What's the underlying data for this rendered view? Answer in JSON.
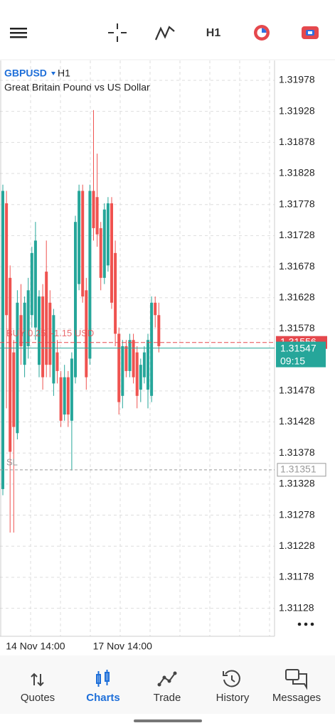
{
  "toolbar": {
    "timeframe": "H1"
  },
  "chart_data": {
    "type": "candlestick",
    "title": "GBPUSD",
    "timeframe": "H1",
    "subtitle": "Great Britain Pound vs US Dollar",
    "categories": [
      null,
      null,
      null,
      null,
      null,
      null,
      null,
      null,
      null,
      "14 Nov 14:00",
      null,
      null,
      null,
      null,
      null,
      null,
      null,
      null,
      null,
      null,
      null,
      null,
      null,
      null,
      null,
      null,
      null,
      null,
      null,
      null,
      null,
      null,
      null,
      "17 Nov 14:00",
      null,
      null,
      null,
      null,
      null,
      null,
      null,
      null,
      null,
      null
    ],
    "open": [
      1.3132,
      1.3178,
      1.3166,
      1.3154,
      1.3141,
      1.316,
      1.3152,
      1.3155,
      1.316,
      1.3158,
      1.3152,
      1.3163,
      1.3167,
      1.3162,
      1.3149,
      1.3154,
      1.315,
      1.3144,
      1.315,
      1.3143,
      1.315,
      1.3165,
      1.318,
      1.3164,
      1.3153,
      1.318,
      1.3179,
      1.3174,
      1.3166,
      1.3168,
      1.3178,
      1.317,
      1.3157,
      1.3147,
      1.3155,
      1.3151,
      1.3156,
      1.3154,
      1.3148,
      1.315,
      1.3148,
      1.3147,
      1.3162,
      1.316
    ],
    "high": [
      1.3181,
      1.318,
      1.3168,
      1.3156,
      1.3164,
      1.3165,
      1.3163,
      1.3166,
      1.3171,
      1.3175,
      1.3164,
      1.3165,
      1.3172,
      1.3164,
      1.3161,
      1.3156,
      1.3151,
      1.3152,
      1.3151,
      1.3154,
      1.3176,
      1.3181,
      1.3181,
      1.3166,
      1.3181,
      1.3193,
      1.3186,
      1.3175,
      1.3178,
      1.3179,
      1.3179,
      1.3172,
      1.3158,
      1.3156,
      1.3156,
      1.3157,
      1.3157,
      1.3155,
      1.3153,
      1.3155,
      1.3157,
      1.3163,
      1.3163,
      1.3162
    ],
    "low": [
      1.3131,
      1.3145,
      1.3125,
      1.3125,
      1.314,
      1.3152,
      1.315,
      1.3153,
      1.3158,
      1.3156,
      1.315,
      1.3148,
      1.315,
      1.315,
      1.3147,
      1.3149,
      1.3142,
      1.3143,
      1.3142,
      1.3135,
      1.3149,
      1.3164,
      1.3162,
      1.3148,
      1.3152,
      1.3172,
      1.3171,
      1.3164,
      1.3165,
      1.3167,
      1.3161,
      1.3155,
      1.3144,
      1.3145,
      1.315,
      1.315,
      1.3149,
      1.3145,
      1.3146,
      1.3149,
      1.3145,
      1.3146,
      1.3158,
      1.3154
    ],
    "close": [
      1.318,
      1.316,
      1.3138,
      1.3142,
      1.3162,
      1.3155,
      1.3162,
      1.3164,
      1.317,
      1.3172,
      1.3163,
      1.315,
      1.3152,
      1.3152,
      1.316,
      1.3151,
      1.3143,
      1.315,
      1.3144,
      1.3153,
      1.3175,
      1.318,
      1.3163,
      1.315,
      1.318,
      1.3174,
      1.3173,
      1.3166,
      1.3177,
      1.3178,
      1.3162,
      1.3157,
      1.3146,
      1.3155,
      1.3151,
      1.3156,
      1.315,
      1.3147,
      1.3152,
      1.3154,
      1.3156,
      1.3162,
      1.316,
      1.3155
    ],
    "up_color": "#26a69a",
    "down_color": "#ef5350",
    "ylim": [
      1.31083,
      1.3201
    ],
    "yticks": [
      1.31978,
      1.31928,
      1.31878,
      1.31828,
      1.31778,
      1.31728,
      1.31678,
      1.31628,
      1.31578,
      1.31478,
      1.31428,
      1.31378,
      1.31328,
      1.31278,
      1.31228,
      1.31178,
      1.31128
    ],
    "current_price": {
      "value": 1.31547,
      "time": "09:15"
    },
    "position": {
      "label": "BUY 0.25, -1.15 USD",
      "price": 1.31556
    },
    "stop_loss": {
      "label": "SL",
      "price": 1.31351
    }
  },
  "nav": [
    "Quotes",
    "Charts",
    "Trade",
    "History",
    "Messages"
  ]
}
